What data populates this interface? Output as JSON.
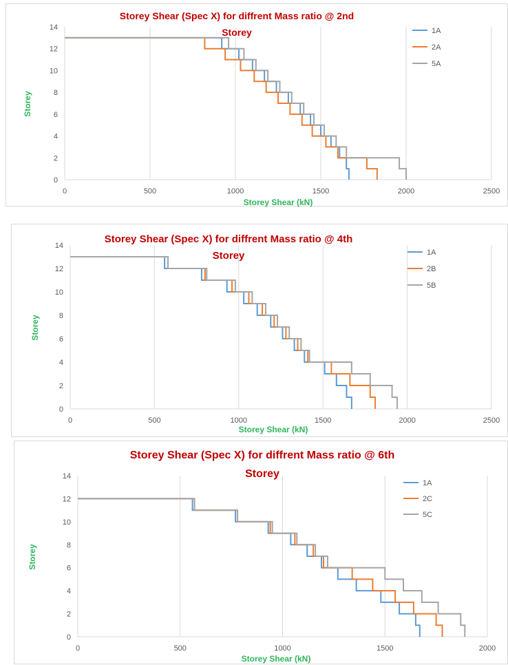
{
  "chart_data": [
    {
      "type": "line",
      "title_line1": "Storey Shear (Spec X) for diffrent Mass ratio  @ 2nd",
      "title_line2": "Storey",
      "xlabel": "Storey Shear (kN)",
      "ylabel": "Storey",
      "xlim": [
        0,
        2500
      ],
      "ylim": [
        0,
        14
      ],
      "xticks": [
        "0",
        "500",
        "1000",
        "1500",
        "2000",
        "2500"
      ],
      "yticks": [
        "0",
        "2",
        "4",
        "6",
        "8",
        "10",
        "12",
        "14"
      ],
      "grid": "vertical",
      "legend_position": "top-right",
      "series": [
        {
          "name": "1A",
          "color": "#5b9bd5",
          "x": [
            1665,
            1650,
            1610,
            1560,
            1500,
            1440,
            1380,
            1310,
            1240,
            1170,
            1100,
            1020,
            920,
            800,
            560,
            270
          ],
          "y": [
            0,
            1,
            2,
            3,
            4,
            5,
            6,
            7,
            8,
            9,
            10,
            11,
            12,
            13,
            13,
            13
          ]
        },
        {
          "name": "2A",
          "color": "#ed7d31",
          "x": [
            1830,
            1770,
            1600,
            1530,
            1450,
            1390,
            1320,
            1250,
            1180,
            1110,
            1030,
            940,
            820,
            600,
            285
          ],
          "y": [
            0,
            1,
            2,
            3,
            4,
            5,
            6,
            7,
            8,
            9,
            10,
            11,
            12,
            13,
            13
          ]
        },
        {
          "name": "5A",
          "color": "#a5a5a5",
          "x": [
            2000,
            1960,
            1650,
            1590,
            1520,
            1460,
            1400,
            1330,
            1260,
            1190,
            1120,
            1050,
            960,
            880,
            650,
            300
          ],
          "y": [
            0,
            1,
            2,
            3,
            4,
            5,
            6,
            7,
            8,
            9,
            10,
            11,
            12,
            13,
            13,
            13
          ]
        }
      ]
    },
    {
      "type": "line",
      "title_line1": "Storey Shear (Spec X) for diffrent Mass ratio  @ 4th",
      "title_line2": "Storey",
      "xlabel": "Storey Shear (kN)",
      "ylabel": "Storey",
      "xlim": [
        0,
        2500
      ],
      "ylim": [
        0,
        14
      ],
      "xticks": [
        "0",
        "500",
        "1000",
        "1500",
        "2000",
        "2500"
      ],
      "yticks": [
        "0",
        "2",
        "4",
        "6",
        "8",
        "10",
        "12",
        "14"
      ],
      "grid": "vertical",
      "legend_position": "top-right",
      "series": [
        {
          "name": "1A",
          "color": "#5b9bd5",
          "x": [
            1670,
            1640,
            1580,
            1510,
            1390,
            1330,
            1260,
            1190,
            1110,
            1030,
            930,
            780,
            560,
            250
          ],
          "y": [
            0,
            1,
            2,
            3,
            4,
            5,
            6,
            7,
            8,
            9,
            10,
            11,
            12,
            13
          ]
        },
        {
          "name": "2B",
          "color": "#ed7d31",
          "x": [
            1810,
            1780,
            1660,
            1550,
            1410,
            1350,
            1280,
            1210,
            1140,
            1060,
            960,
            800,
            580,
            260
          ],
          "y": [
            0,
            1,
            2,
            3,
            4,
            5,
            6,
            7,
            8,
            9,
            10,
            11,
            12,
            13
          ]
        },
        {
          "name": "5B",
          "color": "#a5a5a5",
          "x": [
            1940,
            1910,
            1780,
            1670,
            1420,
            1370,
            1300,
            1230,
            1160,
            1080,
            980,
            810,
            580,
            270
          ],
          "y": [
            0,
            1,
            2,
            3,
            4,
            5,
            6,
            7,
            8,
            9,
            10,
            11,
            12,
            13
          ]
        }
      ]
    },
    {
      "type": "line",
      "title_line1": "Storey Shear (Spec X) for diffrent Mass ratio  @ 6th",
      "title_line2": "Storey",
      "xlabel": "Storey Shear (kN)",
      "ylabel": "Storey",
      "xlim": [
        0,
        2000
      ],
      "ylim": [
        0,
        14
      ],
      "xticks": [
        "0",
        "500",
        "1000",
        "1500",
        "2000"
      ],
      "yticks": [
        "0",
        "2",
        "4",
        "6",
        "8",
        "10",
        "12",
        "14"
      ],
      "grid": "vertical",
      "legend_position": "top-right",
      "series": [
        {
          "name": "1A",
          "color": "#5b9bd5",
          "x": [
            1670,
            1650,
            1570,
            1480,
            1360,
            1270,
            1190,
            1120,
            1040,
            930,
            770,
            560,
            260
          ],
          "y": [
            0,
            1,
            2,
            3,
            4,
            5,
            6,
            7,
            8,
            9,
            10,
            11,
            12
          ]
        },
        {
          "name": "2C",
          "color": "#ed7d31",
          "x": [
            1780,
            1750,
            1640,
            1550,
            1440,
            1340,
            1200,
            1150,
            1060,
            940,
            780,
            570,
            260
          ],
          "y": [
            0,
            1,
            2,
            3,
            4,
            5,
            6,
            7,
            8,
            9,
            10,
            11,
            12
          ]
        },
        {
          "name": "5C",
          "color": "#a5a5a5",
          "x": [
            1890,
            1870,
            1760,
            1680,
            1590,
            1500,
            1220,
            1160,
            1070,
            950,
            780,
            570,
            260
          ],
          "y": [
            0,
            1,
            2,
            3,
            4,
            5,
            6,
            7,
            8,
            9,
            10,
            11,
            12
          ]
        }
      ]
    }
  ]
}
